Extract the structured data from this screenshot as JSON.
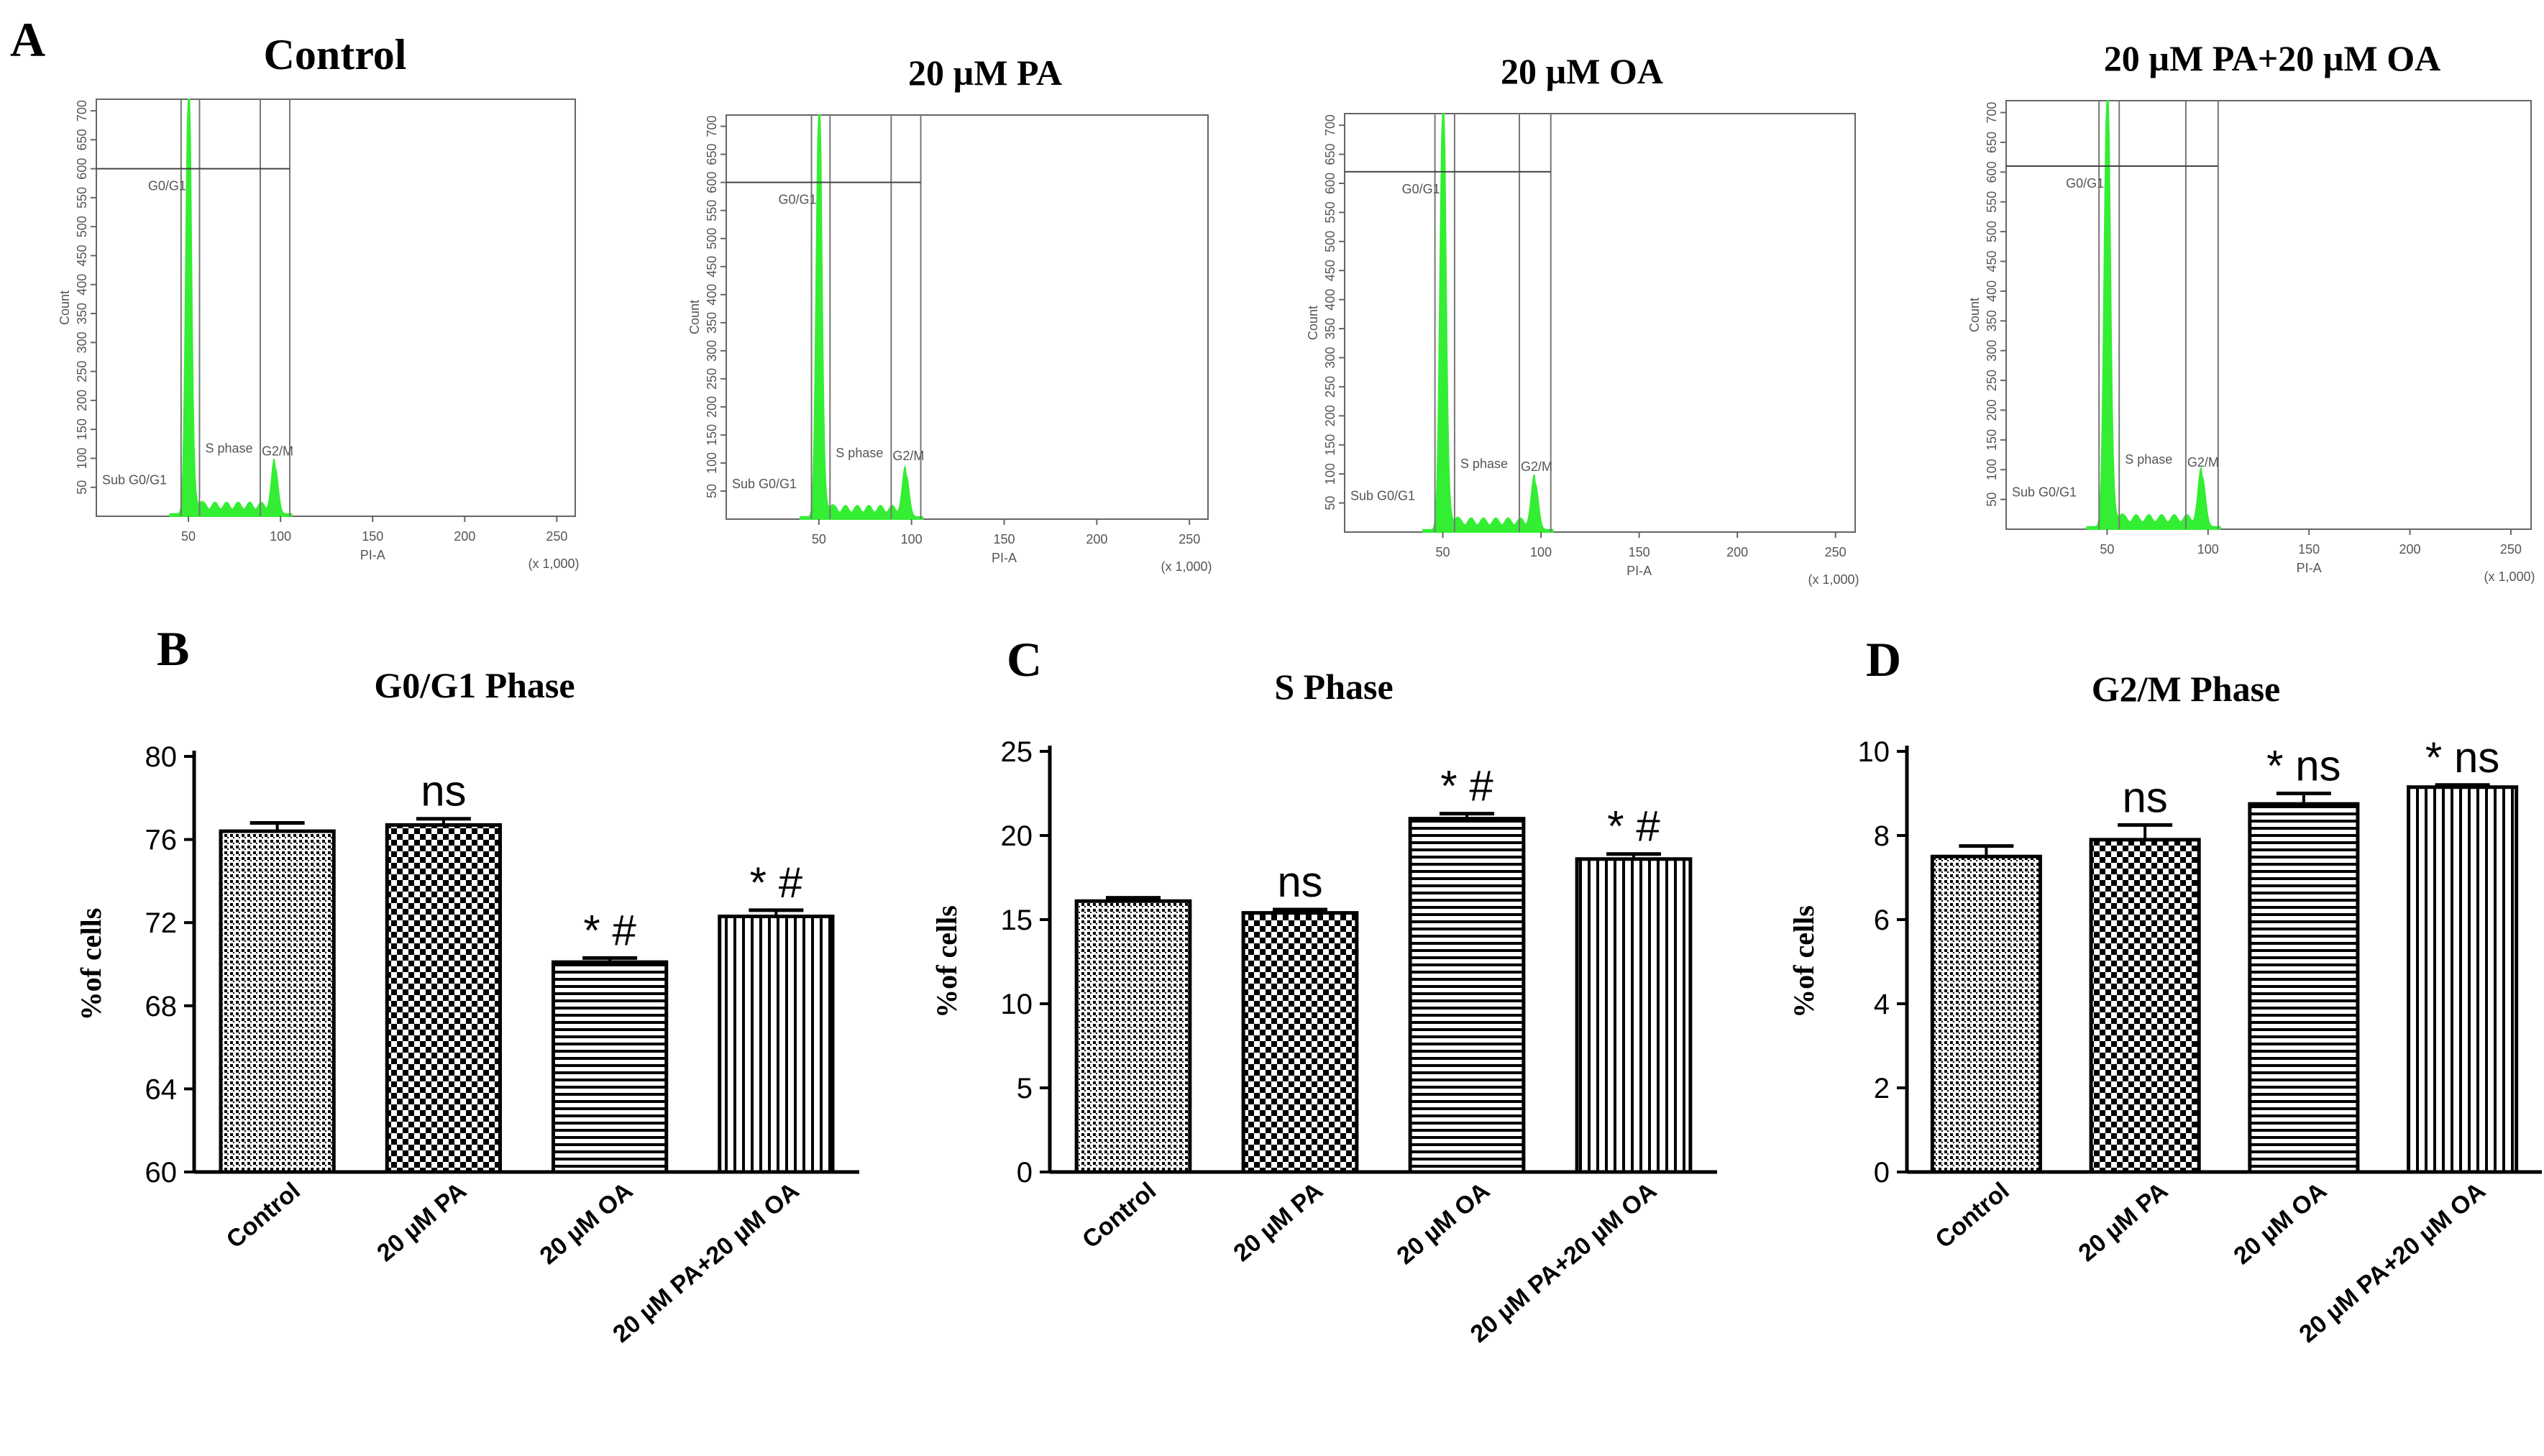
{
  "colors": {
    "histogram": "#33ee33",
    "gate": "#777777",
    "ink": "#000000"
  },
  "panel_letters": [
    "A",
    "B",
    "C",
    "D"
  ],
  "chart_data": [
    {
      "type": "histogram",
      "panel": "A",
      "title": "Control",
      "xlabel": "PI-A",
      "ylabel": "Count",
      "x_scale_note": "(x 1,000)",
      "x_ticks": [
        "50",
        "100",
        "150",
        "200",
        "250"
      ],
      "y_ticks": [
        "50",
        "100",
        "150",
        "200",
        "250",
        "300",
        "350",
        "400",
        "450",
        "500",
        "550",
        "600",
        "650",
        "700"
      ],
      "gates": [
        "G0/G1",
        "S phase",
        "G2/M",
        "Sub G0/G1"
      ],
      "xlim": [
        0,
        260
      ],
      "ylim": [
        0,
        720
      ],
      "peaks": {
        "g1_x": 50,
        "g1_height": 720,
        "g2_x": 97,
        "g2_height": 80
      },
      "gate_lines_x": [
        46,
        56,
        89,
        105
      ],
      "g0g1_hline_y": 600
    },
    {
      "type": "histogram",
      "panel": "A",
      "title": "20 µM PA",
      "xlabel": "PI-A",
      "ylabel": "Count",
      "x_scale_note": "(x 1,000)",
      "x_ticks": [
        "50",
        "100",
        "150",
        "200",
        "250"
      ],
      "y_ticks": [
        "50",
        "100",
        "150",
        "200",
        "250",
        "300",
        "350",
        "400",
        "450",
        "500",
        "550",
        "600",
        "650",
        "700"
      ],
      "gates": [
        "G0/G1",
        "S phase",
        "G2/M",
        "Sub G0/G1"
      ],
      "xlim": [
        0,
        260
      ],
      "ylim": [
        0,
        720
      ],
      "peaks": {
        "g1_x": 50,
        "g1_height": 720,
        "g2_x": 97,
        "g2_height": 75
      },
      "gate_lines_x": [
        46,
        56,
        89,
        105
      ],
      "g0g1_hline_y": 600
    },
    {
      "type": "histogram",
      "panel": "A",
      "title": "20 µM OA",
      "xlabel": "PI-A",
      "ylabel": "Count",
      "x_scale_note": "(x 1,000)",
      "x_ticks": [
        "50",
        "100",
        "150",
        "200",
        "250"
      ],
      "y_ticks": [
        "50",
        "100",
        "150",
        "200",
        "250",
        "300",
        "350",
        "400",
        "450",
        "500",
        "550",
        "600",
        "650",
        "700"
      ],
      "gates": [
        "G0/G1",
        "S phase",
        "G2/M",
        "Sub G0/G1"
      ],
      "xlim": [
        0,
        260
      ],
      "ylim": [
        0,
        720
      ],
      "peaks": {
        "g1_x": 50,
        "g1_height": 720,
        "g2_x": 97,
        "g2_height": 80
      },
      "gate_lines_x": [
        46,
        56,
        89,
        105
      ],
      "g0g1_hline_y": 620
    },
    {
      "type": "histogram",
      "panel": "A",
      "title": "20 µM PA+20 µM OA",
      "xlabel": "PI-A",
      "ylabel": "Count",
      "x_scale_note": "(x 1,000)",
      "x_ticks": [
        "50",
        "100",
        "150",
        "200",
        "250"
      ],
      "y_ticks": [
        "50",
        "100",
        "150",
        "200",
        "250",
        "300",
        "350",
        "400",
        "450",
        "500",
        "550",
        "600",
        "650",
        "700"
      ],
      "gates": [
        "G0/G1",
        "S phase",
        "G2/M",
        "Sub G0/G1"
      ],
      "xlim": [
        0,
        260
      ],
      "ylim": [
        0,
        720
      ],
      "peaks": {
        "g1_x": 50,
        "g1_height": 720,
        "g2_x": 97,
        "g2_height": 85
      },
      "gate_lines_x": [
        46,
        56,
        89,
        105
      ],
      "g0g1_hline_y": 610
    },
    {
      "type": "bar",
      "panel": "B",
      "title": "G0/G1 Phase",
      "ylabel": "%of cells",
      "categories": [
        "Control",
        "20 µM PA",
        "20 µM OA",
        "20 µM PA+20 µM OA"
      ],
      "values": [
        76.4,
        76.7,
        70.1,
        72.3
      ],
      "errors": [
        0.4,
        0.3,
        0.2,
        0.3
      ],
      "annotations": [
        "",
        "ns",
        "* #",
        "* #"
      ],
      "ylim": [
        60,
        80
      ],
      "y_ticks": [
        "60",
        "64",
        "68",
        "72",
        "76",
        "80"
      ],
      "patterns": [
        "dotted",
        "checker",
        "hlines",
        "vlines"
      ]
    },
    {
      "type": "bar",
      "panel": "C",
      "title": "S Phase",
      "ylabel": "%of cells",
      "categories": [
        "Control",
        "20 µM PA",
        "20 µM OA",
        "20 µM PA+20 µM OA"
      ],
      "values": [
        16.1,
        15.4,
        21.0,
        18.6
      ],
      "errors": [
        0.2,
        0.2,
        0.3,
        0.3
      ],
      "annotations": [
        "",
        "ns",
        "* #",
        "* #"
      ],
      "ylim": [
        0,
        25
      ],
      "y_ticks": [
        "0",
        "5",
        "10",
        "15",
        "20",
        "25"
      ],
      "patterns": [
        "dotted",
        "checker",
        "hlines",
        "vlines"
      ]
    },
    {
      "type": "bar",
      "panel": "D",
      "title": "G2/M Phase",
      "ylabel": "%of cells",
      "categories": [
        "Control",
        "20 µM PA",
        "20 µM OA",
        "20 µM PA+20 µM OA"
      ],
      "values": [
        7.5,
        7.9,
        8.75,
        9.15
      ],
      "errors": [
        0.25,
        0.35,
        0.25,
        0.05
      ],
      "annotations": [
        "",
        "ns",
        "* ns",
        "* ns"
      ],
      "ylim": [
        0,
        10
      ],
      "y_ticks": [
        "0",
        "2",
        "4",
        "6",
        "8",
        "10"
      ],
      "patterns": [
        "dotted",
        "checker",
        "hlines",
        "vlines"
      ]
    }
  ]
}
